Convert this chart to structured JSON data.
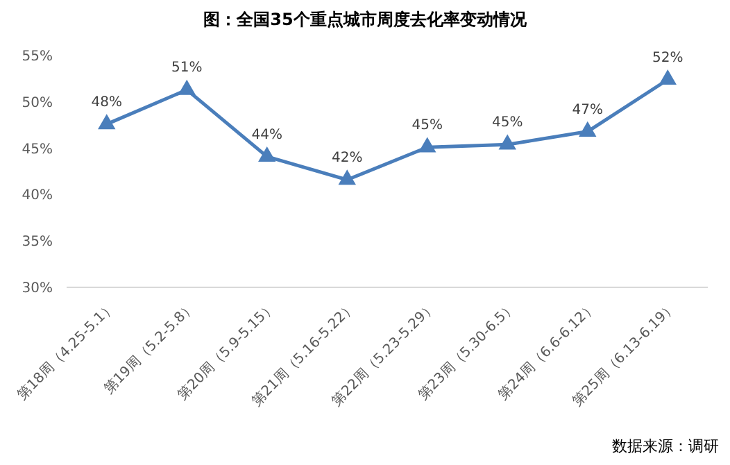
{
  "chart_data": {
    "type": "line",
    "title": "图：全国35个重点城市周度去化率变动情况",
    "categories": [
      "第18周（4.25-5.1）",
      "第19周（5.2-5.8）",
      "第20周（5.9-5.15）",
      "第21周（5.16-5.22）",
      "第22周（5.23-5.29）",
      "第23周（5.30-6.5）",
      "第24周（6.6-6.12）",
      "第25周（6.13-6.19）"
    ],
    "series": [
      {
        "color": "#4a7ebb",
        "values": [
          47.6,
          51.3,
          44.1,
          41.6,
          45.1,
          45.4,
          46.8,
          52.4
        ],
        "value_labels": [
          "48%",
          "51%",
          "44%",
          "42%",
          "45%",
          "45%",
          "47%",
          "52%"
        ]
      }
    ],
    "ylim": [
      30,
      55
    ],
    "yticks": [
      {
        "value": 30,
        "label": "30%"
      },
      {
        "value": 35,
        "label": "35%"
      },
      {
        "value": 40,
        "label": "40%"
      },
      {
        "value": 45,
        "label": "45%"
      },
      {
        "value": 50,
        "label": "50%"
      },
      {
        "value": 55,
        "label": "55%"
      }
    ],
    "marker": "triangle",
    "line_style": "solid",
    "grid": false,
    "annotations": [
      "数据来源：调研"
    ]
  }
}
